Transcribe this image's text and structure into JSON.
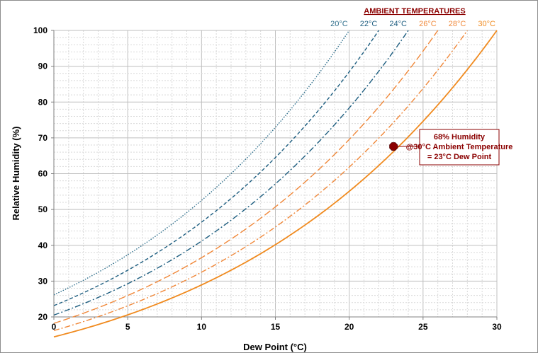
{
  "chart_data": {
    "type": "line",
    "title": "",
    "xlabel": "Dew Point (°C)",
    "ylabel": "Relative Humidity (%)",
    "xlim": [
      0,
      30
    ],
    "ylim": [
      20,
      100
    ],
    "x_ticks": [
      0,
      5,
      10,
      15,
      20,
      25,
      30
    ],
    "y_ticks": [
      20,
      30,
      40,
      50,
      60,
      70,
      80,
      90,
      100
    ],
    "grid": true,
    "legend_title": "AMBIENT TEMPERATURES",
    "series": [
      {
        "name": "20°C",
        "ambient_c": 20,
        "color": "#2f6f8c",
        "dash": "dotted",
        "x": [
          0,
          2.5,
          5,
          7.5,
          10,
          12.5,
          15,
          17.5,
          20
        ],
        "y": [
          26.2,
          30.6,
          35.5,
          41.1,
          52.1,
          53,
          76.5,
          86.8,
          100
        ]
      },
      {
        "name": "22°C",
        "ambient_c": 22,
        "color": "#1e5e80",
        "dash": "dashed",
        "x": [
          0,
          2.5,
          5,
          7.5,
          10,
          12.5,
          15,
          17.5,
          22
        ],
        "y": [
          23,
          27,
          33,
          38,
          46,
          55,
          65,
          76,
          100
        ]
      },
      {
        "name": "24°C",
        "ambient_c": 24,
        "color": "#1e5e80",
        "dash": "dash-dot",
        "x": [
          0,
          2.5,
          5,
          7.5,
          10,
          12.5,
          15,
          17.5,
          24
        ],
        "y": [
          20,
          24,
          28,
          33,
          40,
          47,
          55,
          64,
          100
        ]
      },
      {
        "name": "26°C",
        "ambient_c": 26,
        "color": "#f0883a",
        "dash": "long-dash",
        "x": [
          0,
          5,
          10,
          15,
          20,
          26
        ],
        "y": [
          18,
          25,
          35,
          48,
          63,
          100
        ]
      },
      {
        "name": "28°C",
        "ambient_c": 28,
        "color": "#f0883a",
        "dash": "dash-dot",
        "x": [
          0,
          5,
          10,
          15,
          20,
          25,
          28
        ],
        "y": [
          16,
          22,
          31,
          42,
          55,
          74,
          100
        ]
      },
      {
        "name": "30°C",
        "ambient_c": 30,
        "color": "#f08a1e",
        "dash": "solid",
        "x": [
          0,
          5,
          10,
          15,
          20,
          25,
          30
        ],
        "y": [
          14,
          20,
          27,
          37,
          49,
          66,
          100
        ]
      }
    ],
    "annotation": {
      "x": 23,
      "y": 67.6,
      "marker_color": "#8b0000",
      "lines": [
        "68% Humidity",
        "@30°C Ambient Temperature",
        "= 23°C Dew Point"
      ],
      "text_color": "#8b0000",
      "border_color": "#8b0000"
    }
  }
}
